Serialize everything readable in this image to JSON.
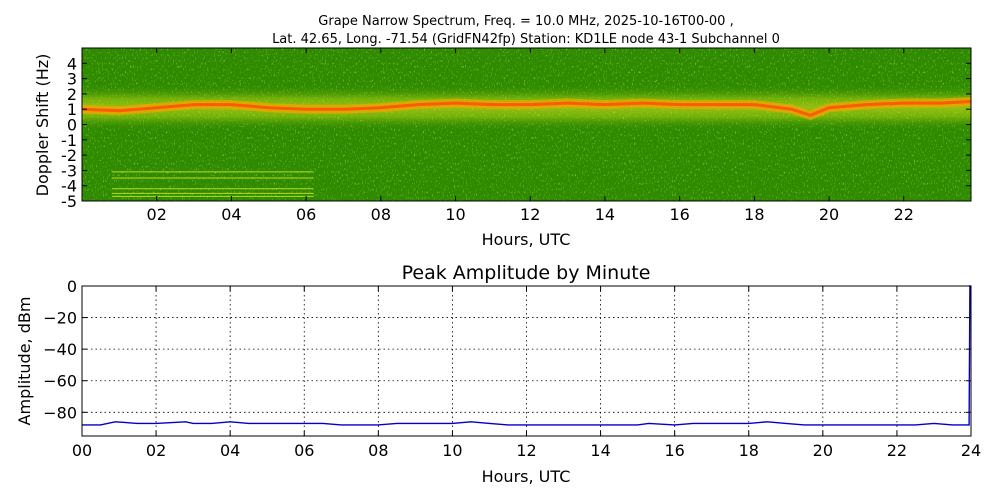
{
  "chart_data": [
    {
      "type": "heatmap",
      "title_line1": "Grape Narrow Spectrum, Freq. = 10.0 MHz, 2025-10-16T00-00 ,",
      "title_line2": "Lat.  42.65, Long. -71.54 (GridFN42fp) Station: KD1LE node 43-1 Subchannel 0",
      "xlabel": "Hours, UTC",
      "ylabel": "Doppler Shift (Hz)",
      "xlim": [
        0,
        23.8
      ],
      "ylim": [
        -5,
        5
      ],
      "xticks": [
        2,
        4,
        6,
        8,
        10,
        12,
        14,
        16,
        18,
        20,
        22
      ],
      "xtick_labels": [
        "02",
        "04",
        "06",
        "08",
        "10",
        "12",
        "14",
        "16",
        "18",
        "20",
        "22"
      ],
      "yticks": [
        4,
        3,
        2,
        1,
        0,
        -1,
        -2,
        -3,
        -4,
        -5
      ],
      "ytick_labels": [
        "4",
        "3",
        "2",
        "1",
        "0",
        "-1",
        "-2",
        "-3",
        "-4",
        "-5"
      ],
      "colors": {
        "background": "#2e8b00",
        "mid": "#d6e61e",
        "peak": "#ff5a00"
      },
      "doppler_trace": {
        "hours": [
          0,
          1,
          2,
          3,
          4,
          5,
          6,
          7,
          8,
          9,
          10,
          11,
          12,
          13,
          14,
          15,
          16,
          17,
          18,
          19,
          19.5,
          20,
          21,
          22,
          23,
          23.8
        ],
        "hz": [
          1.0,
          0.9,
          1.1,
          1.3,
          1.3,
          1.1,
          1.0,
          1.0,
          1.1,
          1.3,
          1.4,
          1.3,
          1.3,
          1.4,
          1.3,
          1.4,
          1.3,
          1.3,
          1.3,
          1.0,
          0.6,
          1.1,
          1.3,
          1.4,
          1.4,
          1.5
        ]
      },
      "interference_lines": {
        "hours": [
          0.8,
          6.2
        ],
        "hz": [
          -3.1,
          -3.5,
          -4.2,
          -4.5,
          -4.7
        ]
      }
    },
    {
      "type": "line",
      "title": "Peak Amplitude by Minute",
      "xlabel": "Hours, UTC",
      "ylabel": "Amplitude, dBm",
      "xlim": [
        0,
        24
      ],
      "ylim": [
        -95,
        0
      ],
      "grid": true,
      "xticks": [
        0,
        2,
        4,
        6,
        8,
        10,
        12,
        14,
        16,
        18,
        20,
        22,
        24
      ],
      "xtick_labels": [
        "00",
        "02",
        "04",
        "06",
        "08",
        "10",
        "12",
        "14",
        "16",
        "18",
        "20",
        "22",
        "24"
      ],
      "yticks": [
        0,
        -20,
        -40,
        -60,
        -80
      ],
      "ytick_labels": [
        "0",
        "−20",
        "−40",
        "−60",
        "−80"
      ],
      "series": [
        {
          "color": "#0000cc",
          "x": [
            0,
            0.5,
            0.9,
            1.5,
            2,
            2.8,
            3,
            3.5,
            4,
            4.5,
            5,
            5.5,
            6,
            6.5,
            7,
            7.5,
            8,
            8.5,
            9,
            9.5,
            10,
            10.5,
            11,
            11.5,
            12,
            12.5,
            13,
            13.5,
            14,
            14.5,
            15,
            15.3,
            16,
            16.5,
            17,
            17.5,
            18,
            18.5,
            19,
            19.5,
            20,
            20.5,
            21,
            21.5,
            22,
            22.5,
            23,
            23.5,
            23.95,
            23.97,
            24
          ],
          "y": [
            -88,
            -88,
            -86,
            -87,
            -87,
            -86,
            -87,
            -87,
            -86,
            -87,
            -87,
            -87,
            -87,
            -87,
            -88,
            -88,
            -88,
            -87,
            -87,
            -87,
            -87,
            -86,
            -87,
            -88,
            -88,
            -88,
            -88,
            -88,
            -88,
            -88,
            -88,
            -87,
            -88,
            -87,
            -87,
            -87,
            -87,
            -86,
            -87,
            -88,
            -88,
            -88,
            -88,
            -88,
            -88,
            -88,
            -87,
            -88,
            -88,
            0,
            0
          ]
        }
      ]
    }
  ]
}
